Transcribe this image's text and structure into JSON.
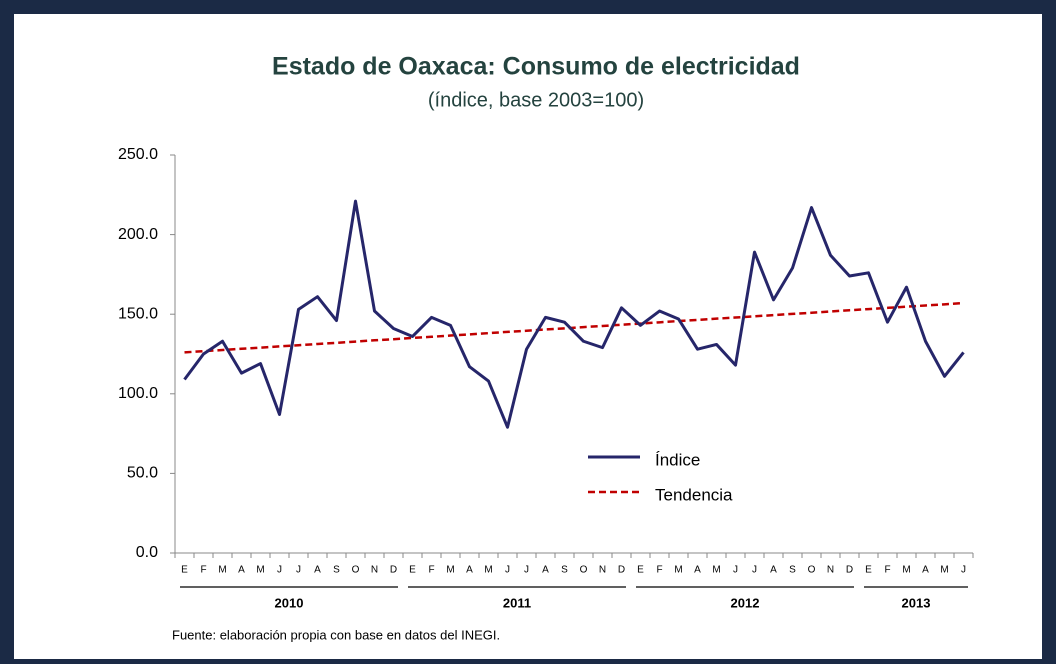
{
  "chart_data": {
    "type": "line",
    "title": "Estado de Oaxaca: Consumo de electricidad",
    "subtitle": "(índice, base 2003=100)",
    "note": "Fuente: elaboración propia con base en datos del INEGI.",
    "categories": [
      "E",
      "F",
      "M",
      "A",
      "M",
      "J",
      "J",
      "A",
      "S",
      "O",
      "N",
      "D",
      "E",
      "F",
      "M",
      "A",
      "M",
      "J",
      "J",
      "A",
      "S",
      "O",
      "N",
      "D",
      "E",
      "F",
      "M",
      "A",
      "M",
      "J",
      "J",
      "A",
      "S",
      "O",
      "N",
      "D",
      "E",
      "F",
      "M",
      "A",
      "M",
      "J"
    ],
    "groups": [
      {
        "label": "2010",
        "span": 12
      },
      {
        "label": "2011",
        "span": 12
      },
      {
        "label": "2012",
        "span": 12
      },
      {
        "label": "2013",
        "span": 6
      }
    ],
    "series": [
      {
        "name": "Índice",
        "color": "#26266a",
        "dash": false,
        "values": [
          109,
          125,
          133,
          113,
          119,
          87,
          153,
          161,
          146,
          221,
          152,
          141,
          136,
          148,
          143,
          117,
          108,
          79,
          128,
          148,
          145,
          133,
          129,
          154,
          143,
          152,
          147,
          128,
          131,
          118,
          189,
          159,
          179,
          217,
          187,
          174,
          176,
          145,
          167,
          133,
          111,
          126
        ]
      },
      {
        "name": "Tendencia",
        "color": "#c00000",
        "dash": true,
        "values": [
          126.0,
          126.8,
          127.5,
          128.3,
          129.0,
          129.8,
          130.5,
          131.3,
          132.0,
          132.8,
          133.6,
          134.3,
          135.1,
          135.8,
          136.6,
          137.3,
          138.1,
          138.9,
          139.6,
          140.4,
          141.1,
          141.9,
          142.6,
          143.4,
          144.1,
          144.9,
          145.7,
          146.4,
          147.2,
          147.9,
          148.7,
          149.4,
          150.2,
          150.9,
          151.7,
          152.5,
          153.2,
          154.0,
          154.7,
          155.5,
          156.2,
          157.0
        ]
      }
    ],
    "ylim": [
      0,
      250
    ],
    "yticks": [
      {
        "value": 0,
        "label": "0.0"
      },
      {
        "value": 50,
        "label": "50.0"
      },
      {
        "value": 100,
        "label": "100.0"
      },
      {
        "value": 150,
        "label": "150.0"
      },
      {
        "value": 200,
        "label": "200.0"
      },
      {
        "value": 250,
        "label": "250.0"
      }
    ],
    "grid": false
  }
}
